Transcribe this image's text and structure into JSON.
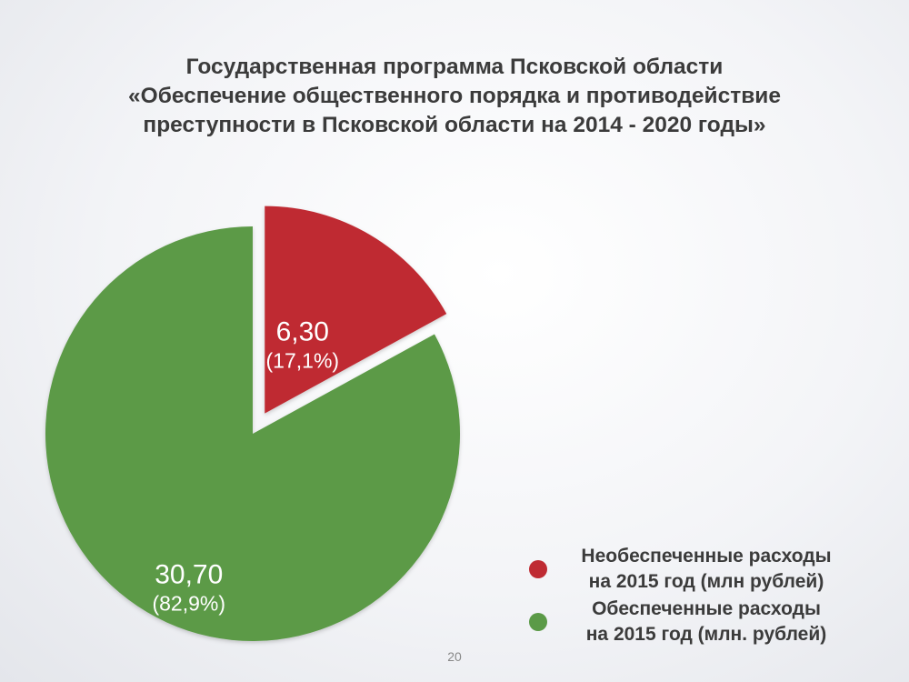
{
  "title_lines": [
    "Государственная программа Псковской области",
    "«Обеспечение общественного порядка и противодействие",
    "преступности в Псковской области на 2014 - 2020 годы»"
  ],
  "chart_data": {
    "type": "pie",
    "title": "Государственная программа Псковской области «Обеспечение общественного порядка и противодействие преступности в Псковской области на 2014 - 2020 годы»",
    "slices": [
      {
        "name": "Необеспеченные расходы на 2015 год (млн рублей)",
        "value": 6.3,
        "value_label": "6,30",
        "percent": 17.1,
        "percent_label": "(17,1%)",
        "color": "#bf2b33",
        "exploded": true
      },
      {
        "name": "Обеспеченные расходы на 2015 год (млн. рублей)",
        "value": 30.7,
        "value_label": "30,70",
        "percent": 82.9,
        "percent_label": "(82,9%)",
        "color": "#5b9a47",
        "exploded": false
      }
    ],
    "legend_position": "bottom-right"
  },
  "legend": [
    {
      "label": "Необеспеченные расходы\nна 2015 год  (млн рублей)",
      "color": "#bf2b33"
    },
    {
      "label": "Обеспеченные расходы\nна 2015 год (млн. рублей)",
      "color": "#5b9a47"
    }
  ],
  "page_number": "20"
}
